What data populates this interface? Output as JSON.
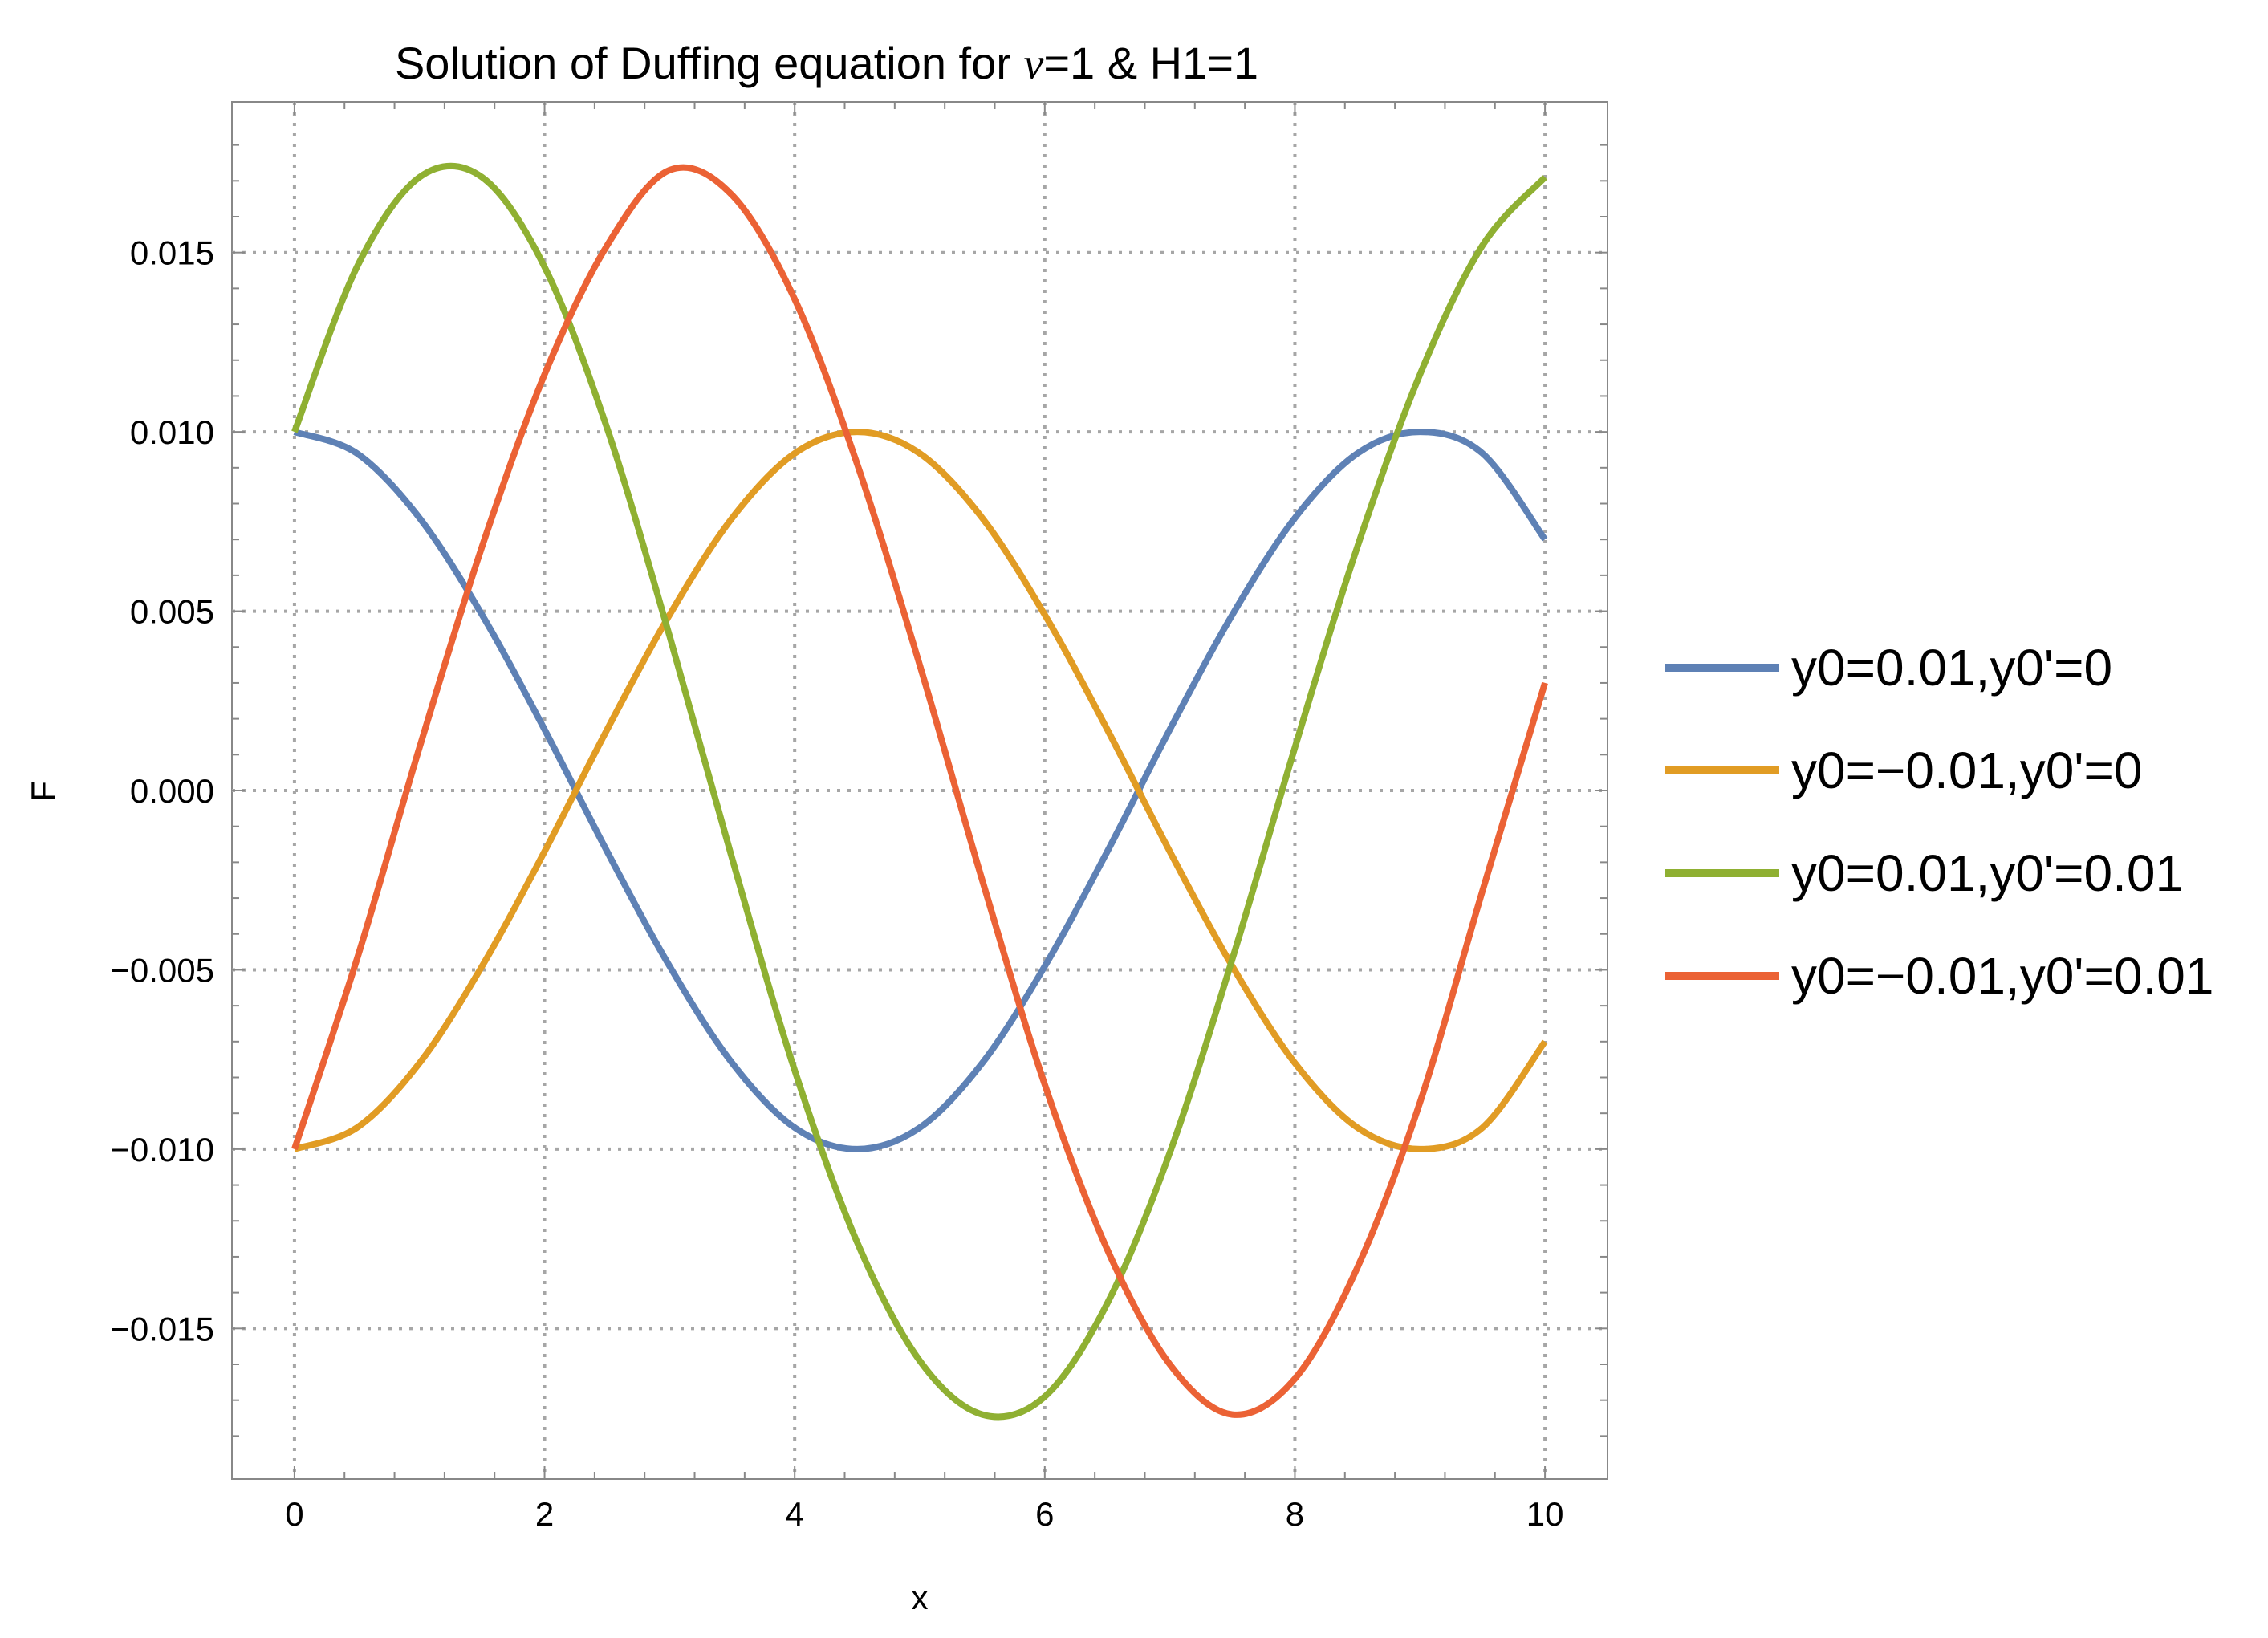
{
  "chart_data": {
    "type": "line",
    "title_parts": [
      "Solution of Duffing equation for ",
      "v",
      "=1 & H1=1"
    ],
    "xlabel": "x",
    "ylabel": "F",
    "xlim": [
      -0.5,
      10.5
    ],
    "ylim": [
      -0.0192,
      0.0192
    ],
    "x_ticks": [
      0,
      2,
      4,
      6,
      8,
      10
    ],
    "x_tick_labels": [
      "0",
      "2",
      "4",
      "6",
      "8",
      "10"
    ],
    "y_ticks": [
      -0.015,
      -0.01,
      -0.005,
      0.0,
      0.005,
      0.01,
      0.015
    ],
    "y_tick_labels": [
      "−0.015",
      "−0.010",
      "−0.005",
      "0.000",
      "0.005",
      "0.010",
      "0.015"
    ],
    "grid": true,
    "legend_position": "right",
    "x": [
      0,
      0.5,
      1,
      1.5,
      2,
      2.5,
      3,
      3.5,
      4,
      4.5,
      5,
      5.5,
      6,
      6.5,
      7,
      7.5,
      8,
      8.5,
      9,
      9.5,
      10
    ],
    "series": [
      {
        "name": "y0=0.01,y0'=0",
        "color": "#5e81b5",
        "values": [
          0.01,
          0.0094,
          0.0076,
          0.0049,
          0.0017,
          -0.0017,
          -0.0049,
          -0.0076,
          -0.0094,
          -0.01,
          -0.0094,
          -0.0076,
          -0.0049,
          -0.0017,
          0.0017,
          0.0049,
          0.0076,
          0.0094,
          0.01,
          0.0094,
          0.007
        ]
      },
      {
        "name": "y0=−0.01,y0'=0",
        "color": "#e19c24",
        "values": [
          -0.01,
          -0.0094,
          -0.0076,
          -0.0049,
          -0.0017,
          0.0017,
          0.0049,
          0.0076,
          0.0094,
          0.01,
          0.0094,
          0.0076,
          0.0049,
          0.0017,
          -0.0017,
          -0.0049,
          -0.0076,
          -0.0094,
          -0.01,
          -0.0094,
          -0.007
        ]
      },
      {
        "name": "y0=0.01,y0'=0.01",
        "color": "#8fb032",
        "values": [
          0.01,
          0.0146,
          0.0171,
          0.0171,
          0.0146,
          0.0101,
          0.0043,
          -0.0019,
          -0.0078,
          -0.0126,
          -0.0159,
          -0.0174,
          -0.0169,
          -0.0143,
          -0.0101,
          -0.0047,
          0.0012,
          0.0068,
          0.0116,
          0.0152,
          0.0171
        ]
      },
      {
        "name": "y0=−0.01,y0'=0.01",
        "color": "#eb6235",
        "values": [
          -0.01,
          -0.0047,
          0.0012,
          0.0068,
          0.0116,
          0.0152,
          0.0173,
          0.0166,
          0.0137,
          0.0091,
          0.0035,
          -0.0025,
          -0.0082,
          -0.0128,
          -0.016,
          -0.0174,
          -0.0164,
          -0.0133,
          -0.0087,
          -0.0028,
          0.003
        ]
      }
    ]
  }
}
